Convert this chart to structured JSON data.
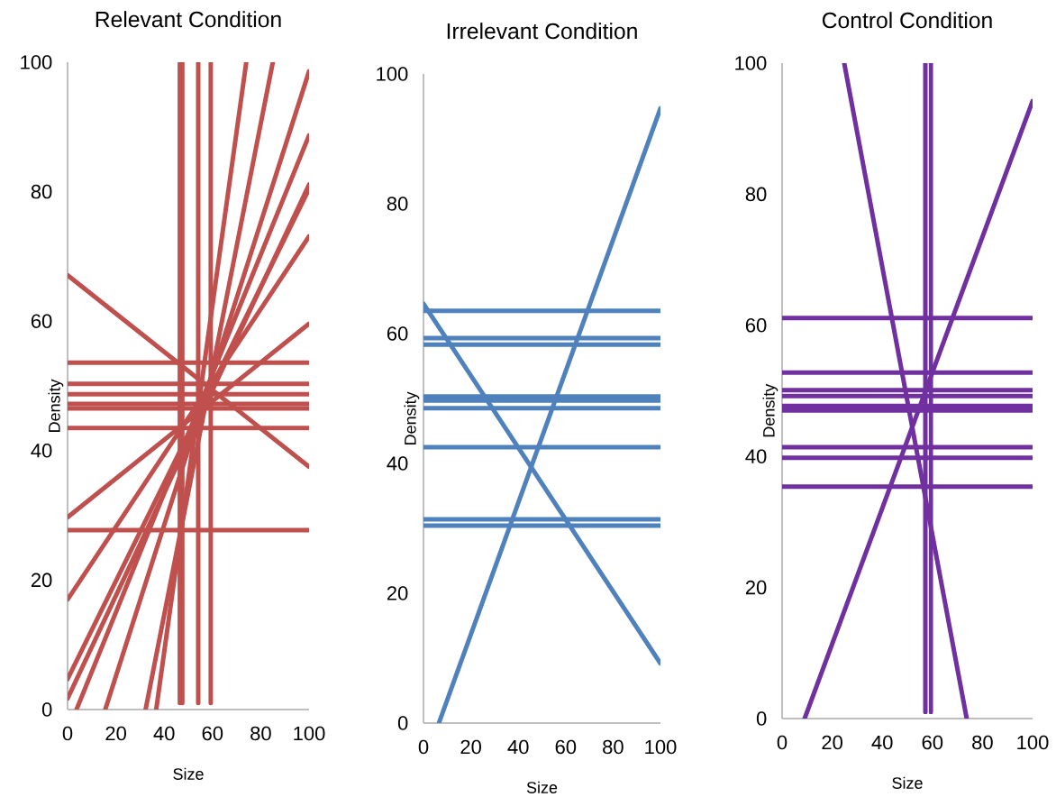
{
  "chart_data": [
    {
      "type": "line",
      "title": "Relevant Condition",
      "xlabel": "Size",
      "ylabel": "Density",
      "xlim": [
        0,
        100
      ],
      "ylim": [
        0,
        100
      ],
      "xticks": [
        0,
        20,
        40,
        60,
        80,
        100
      ],
      "yticks": [
        0,
        20,
        40,
        60,
        80,
        100
      ],
      "series": [
        {
          "color": "#c0504d",
          "x": [
            0,
            100
          ],
          "values": [
            53.6,
            53.6
          ]
        },
        {
          "color": "#c0504d",
          "x": [
            0,
            100
          ],
          "values": [
            50.3,
            50.3
          ]
        },
        {
          "color": "#c0504d",
          "x": [
            0,
            100
          ],
          "values": [
            48.7,
            48.7
          ]
        },
        {
          "color": "#c0504d",
          "x": [
            0,
            100
          ],
          "values": [
            47.2,
            47.2
          ]
        },
        {
          "color": "#c0504d",
          "x": [
            0,
            100
          ],
          "values": [
            46.5,
            46.5
          ]
        },
        {
          "color": "#c0504d",
          "x": [
            0,
            100
          ],
          "values": [
            43.5,
            43.5
          ]
        },
        {
          "color": "#c0504d",
          "x": [
            0,
            100
          ],
          "values": [
            27.7,
            27.7
          ]
        },
        {
          "color": "#c0504d",
          "x": [
            46.5,
            46.5
          ],
          "values": [
            1,
            100
          ]
        },
        {
          "color": "#c0504d",
          "x": [
            47.5,
            47.5
          ],
          "values": [
            1,
            100
          ]
        },
        {
          "color": "#c0504d",
          "x": [
            54.1,
            54.1
          ],
          "values": [
            1,
            100
          ]
        },
        {
          "color": "#c0504d",
          "x": [
            59.3,
            59.3
          ],
          "values": [
            1,
            100
          ]
        },
        {
          "color": "#c0504d",
          "x": [
            0,
            100
          ],
          "values": [
            67.1,
            37.5
          ]
        },
        {
          "color": "#c0504d",
          "x": [
            0,
            100
          ],
          "values": [
            29.7,
            59.6
          ]
        },
        {
          "color": "#c0504d",
          "x": [
            0,
            100
          ],
          "values": [
            17.0,
            73.1
          ]
        },
        {
          "color": "#c0504d",
          "x": [
            0,
            100
          ],
          "values": [
            4.7,
            80.4
          ]
        },
        {
          "color": "#c0504d",
          "x": [
            0,
            100
          ],
          "values": [
            1.7,
            81.1
          ]
        },
        {
          "color": "#c0504d",
          "x": [
            3.7,
            100
          ],
          "values": [
            0,
            88.7
          ]
        },
        {
          "color": "#c0504d",
          "x": [
            15.6,
            100
          ],
          "values": [
            0,
            98.6
          ]
        },
        {
          "color": "#c0504d",
          "x": [
            32.3,
            85
          ],
          "values": [
            0,
            100
          ]
        },
        {
          "color": "#c0504d",
          "x": [
            36.7,
            74
          ],
          "values": [
            0,
            100
          ]
        }
      ]
    },
    {
      "type": "line",
      "title": "Irrelevant Condition",
      "xlabel": "Size",
      "ylabel": "Density",
      "xlim": [
        0,
        100
      ],
      "ylim": [
        0,
        100
      ],
      "xticks": [
        0,
        20,
        40,
        60,
        80,
        100
      ],
      "yticks": [
        0,
        20,
        40,
        60,
        80,
        100
      ],
      "series": [
        {
          "color": "#4f81bd",
          "x": [
            0,
            100
          ],
          "values": [
            63.5,
            63.5
          ]
        },
        {
          "color": "#4f81bd",
          "x": [
            0,
            100
          ],
          "values": [
            59.3,
            59.3
          ]
        },
        {
          "color": "#4f81bd",
          "x": [
            0,
            100
          ],
          "values": [
            58.3,
            58.3
          ]
        },
        {
          "color": "#4f81bd",
          "x": [
            0,
            100
          ],
          "values": [
            50.3,
            50.3
          ]
        },
        {
          "color": "#4f81bd",
          "x": [
            0,
            100
          ],
          "values": [
            49.7,
            49.7
          ]
        },
        {
          "color": "#4f81bd",
          "x": [
            0,
            100
          ],
          "values": [
            48.5,
            48.5
          ]
        },
        {
          "color": "#4f81bd",
          "x": [
            0,
            100
          ],
          "values": [
            42.5,
            42.5
          ]
        },
        {
          "color": "#4f81bd",
          "x": [
            0,
            100
          ],
          "values": [
            31.4,
            31.4
          ]
        },
        {
          "color": "#4f81bd",
          "x": [
            0,
            100
          ],
          "values": [
            30.4,
            30.4
          ]
        },
        {
          "color": "#4f81bd",
          "x": [
            0,
            100
          ],
          "values": [
            64.6,
            9.2
          ]
        },
        {
          "color": "#4f81bd",
          "x": [
            6.5,
            100
          ],
          "values": [
            0,
            94.7
          ]
        }
      ]
    },
    {
      "type": "line",
      "title": "Control Condition",
      "xlabel": "Size",
      "ylabel": "Density",
      "xlim": [
        0,
        100
      ],
      "ylim": [
        0,
        100
      ],
      "xticks": [
        0,
        20,
        40,
        60,
        80,
        100
      ],
      "yticks": [
        0,
        20,
        40,
        60,
        80,
        100
      ],
      "series": [
        {
          "color": "#7030a0",
          "x": [
            0,
            100
          ],
          "values": [
            61.1,
            61.1
          ]
        },
        {
          "color": "#7030a0",
          "x": [
            0,
            100
          ],
          "values": [
            52.8,
            52.8
          ]
        },
        {
          "color": "#7030a0",
          "x": [
            0,
            100
          ],
          "values": [
            50.1,
            50.1
          ]
        },
        {
          "color": "#7030a0",
          "x": [
            0,
            100
          ],
          "values": [
            49.2,
            49.2
          ]
        },
        {
          "color": "#7030a0",
          "x": [
            0,
            100
          ],
          "values": [
            47.7,
            47.7
          ]
        },
        {
          "color": "#7030a0",
          "x": [
            0,
            100
          ],
          "values": [
            47.3,
            47.3
          ]
        },
        {
          "color": "#7030a0",
          "x": [
            0,
            100
          ],
          "values": [
            47.0,
            47.0
          ]
        },
        {
          "color": "#7030a0",
          "x": [
            0,
            100
          ],
          "values": [
            41.4,
            41.4
          ]
        },
        {
          "color": "#7030a0",
          "x": [
            0,
            100
          ],
          "values": [
            39.8,
            39.8
          ]
        },
        {
          "color": "#7030a0",
          "x": [
            0,
            100
          ],
          "values": [
            35.4,
            35.4
          ]
        },
        {
          "color": "#7030a0",
          "x": [
            57.2,
            57.2
          ],
          "values": [
            1,
            100
          ]
        },
        {
          "color": "#7030a0",
          "x": [
            59.4,
            59.4
          ],
          "values": [
            1,
            100
          ]
        },
        {
          "color": "#7030a0",
          "x": [
            24.8,
            73.7
          ],
          "values": [
            100,
            0
          ]
        },
        {
          "color": "#7030a0",
          "x": [
            9.0,
            100
          ],
          "values": [
            0,
            94.2
          ]
        }
      ]
    }
  ]
}
